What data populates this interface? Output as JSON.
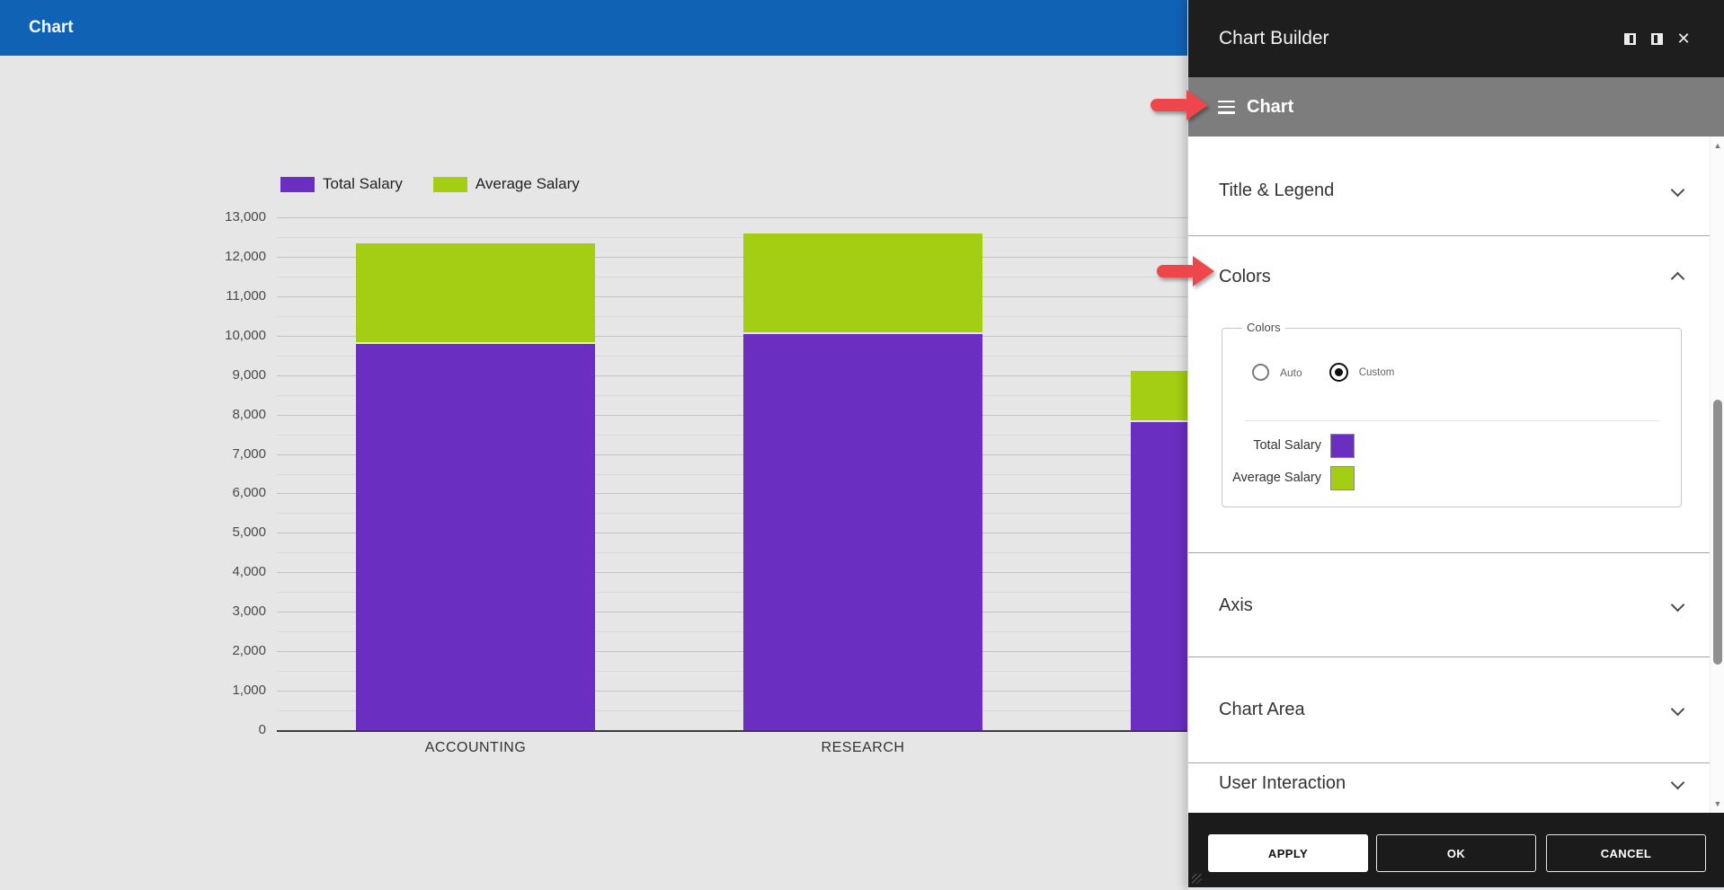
{
  "app": {
    "header_title": "Chart"
  },
  "chart_data": {
    "type": "bar",
    "stacked": true,
    "title": "",
    "categories": [
      "ACCOUNTING",
      "RESEARCH",
      ""
    ],
    "series": [
      {
        "name": "Total Salary",
        "color": "#6A2FC0",
        "values": [
          9800,
          10050,
          7800
        ]
      },
      {
        "name": "Average Salary",
        "color": "#A3CE13",
        "values": [
          2550,
          2550,
          1300
        ]
      }
    ],
    "ylim": [
      0,
      13000
    ],
    "y_major_step": 1000,
    "y_minor_step": 500,
    "grid": true,
    "legend_position": "top-left",
    "background": "#E6E6E6",
    "third_category_label_hidden_by_panel": true
  },
  "panel": {
    "title": "Chart Builder",
    "titlebar_icons": [
      "dock-left-icon",
      "dock-right-icon",
      "close-icon"
    ],
    "close_glyph": "✕",
    "menu": {
      "icon": "hamburger-icon",
      "label": "Chart"
    },
    "sections": [
      {
        "label": "Title & Legend",
        "expanded": false
      },
      {
        "label": "Colors",
        "expanded": true
      },
      {
        "label": "Axis",
        "expanded": false
      },
      {
        "label": "Chart Area",
        "expanded": false
      },
      {
        "label": "User Interaction",
        "expanded": false
      }
    ],
    "colors_group": {
      "legend": "Colors",
      "radios": [
        {
          "label": "Auto",
          "selected": false
        },
        {
          "label": "Custom",
          "selected": true
        }
      ],
      "series": [
        {
          "label": "Total Salary",
          "color": "#6A2FC0"
        },
        {
          "label": "Average Salary",
          "color": "#A3CE13"
        }
      ]
    },
    "footer_buttons": [
      "APPLY",
      "OK",
      "CANCEL"
    ],
    "scroll_arrows": {
      "up": "▲",
      "down": "▼"
    }
  },
  "annotations": {
    "arrow_color": "#EF464B",
    "arrows": [
      {
        "target": "Chart menu bar"
      },
      {
        "target": "Colors section"
      }
    ]
  }
}
